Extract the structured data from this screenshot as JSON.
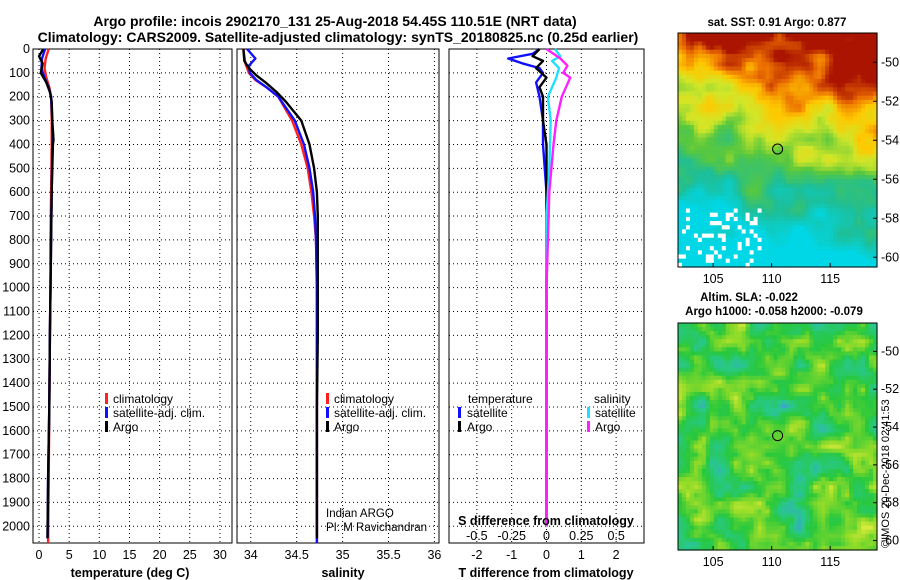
{
  "header": {
    "title_line1": "Argo profile: incois 2902170_131 25-Aug-2018 54.45S 110.51E (NRT data)",
    "title_line2": "Climatology: CARS2009. Satellite-adjusted climatology: synTS_20180825.nc (0.25d earlier)"
  },
  "colors": {
    "climatology": "#ff2020",
    "satellite": "#1010ff",
    "argo": "#000000",
    "satellite_salinity": "#20e0ff",
    "argo_salinity": "#ff20ff"
  },
  "depth_ticks": [
    "0",
    "100",
    "200",
    "300",
    "400",
    "500",
    "600",
    "700",
    "800",
    "900",
    "1000",
    "1100",
    "1200",
    "1300",
    "1400",
    "1500",
    "1600",
    "1700",
    "1800",
    "1900",
    "2000"
  ],
  "chart_data": [
    {
      "type": "line",
      "id": "temperature",
      "xlabel": "temperature (deg C)",
      "ylabel": "depth (dbar)",
      "xlim": [
        -1,
        32
      ],
      "ylim": [
        2070,
        0
      ],
      "xticks": [
        "0",
        "5",
        "10",
        "15",
        "20",
        "25",
        "30"
      ],
      "xtick_values": [
        0,
        5,
        10,
        15,
        20,
        25,
        30
      ],
      "legend": [
        "climatology",
        "satellite-adj. clim.",
        "Argo"
      ],
      "legend_placement": "bottom-right",
      "series": [
        {
          "name": "climatology",
          "color": "#ff2020",
          "depth": [
            0,
            40,
            80,
            120,
            160,
            200,
            300,
            400,
            600,
            800,
            1000,
            1200,
            1500,
            1800,
            2070
          ],
          "values": [
            1.6,
            1.1,
            0.9,
            1.2,
            1.7,
            2.0,
            2.1,
            2.1,
            2.0,
            1.9,
            1.9,
            1.8,
            1.7,
            1.6,
            1.5
          ]
        },
        {
          "name": "satellite-adj. clim.",
          "color": "#1010ff",
          "depth": [
            0,
            40,
            80,
            120,
            160,
            200,
            300,
            400,
            600,
            800,
            1000,
            1200,
            1500,
            1800,
            2050
          ],
          "values": [
            1.0,
            0.5,
            0.4,
            0.9,
            1.6,
            2.0,
            2.2,
            2.2,
            2.1,
            2.0,
            1.9,
            1.8,
            1.7,
            1.5,
            1.4
          ]
        },
        {
          "name": "Argo",
          "color": "#000000",
          "depth": [
            0,
            30,
            60,
            100,
            140,
            180,
            220,
            300,
            380,
            400,
            600,
            800,
            1000,
            1200,
            1500,
            1800,
            2050
          ],
          "values": [
            0.7,
            0.0,
            0.6,
            0.3,
            1.2,
            1.8,
            2.1,
            2.2,
            2.4,
            2.3,
            2.1,
            2.0,
            1.9,
            1.8,
            1.7,
            1.5,
            1.4
          ]
        }
      ]
    },
    {
      "type": "line",
      "id": "salinity",
      "xlabel": "salinity",
      "xlim": [
        33.85,
        36.05
      ],
      "ylim": [
        2070,
        0
      ],
      "xticks": [
        "34",
        "34.5",
        "35",
        "35.5",
        "36"
      ],
      "xtick_values": [
        34,
        34.5,
        35,
        35.5,
        36
      ],
      "legend": [
        "climatology",
        "satellite-adj. clim.",
        "Argo"
      ],
      "legend_placement": "bottom-right",
      "annotation": [
        "Indian ARGO",
        "PI: M Ravichandran"
      ],
      "series": [
        {
          "name": "climatology",
          "color": "#ff2020",
          "depth": [
            0,
            60,
            100,
            130,
            160,
            200,
            300,
            400,
            500,
            600,
            700,
            800,
            1000,
            1200,
            1500,
            1800,
            2070
          ],
          "values": [
            33.92,
            33.94,
            33.98,
            34.05,
            34.17,
            34.3,
            34.45,
            34.55,
            34.62,
            34.66,
            34.69,
            34.71,
            34.72,
            34.72,
            34.72,
            34.72,
            34.72
          ]
        },
        {
          "name": "satellite-adj. clim.",
          "color": "#1010ff",
          "depth": [
            0,
            40,
            70,
            100,
            130,
            160,
            200,
            300,
            400,
            500,
            600,
            700,
            800,
            1000,
            1200,
            1500,
            1800,
            2070
          ],
          "values": [
            33.96,
            34.05,
            33.98,
            33.99,
            34.06,
            34.17,
            34.3,
            34.48,
            34.58,
            34.64,
            34.68,
            34.7,
            34.71,
            34.72,
            34.72,
            34.72,
            34.72,
            34.72
          ]
        },
        {
          "name": "Argo",
          "color": "#000000",
          "depth": [
            0,
            50,
            80,
            110,
            140,
            180,
            220,
            300,
            400,
            500,
            600,
            700,
            800,
            1000,
            1200,
            1500,
            1800,
            2050
          ],
          "values": [
            33.92,
            33.93,
            33.98,
            34.06,
            34.16,
            34.28,
            34.38,
            34.55,
            34.64,
            34.69,
            34.72,
            34.73,
            34.73,
            34.73,
            34.73,
            34.72,
            34.72,
            34.72
          ]
        }
      ]
    },
    {
      "type": "line",
      "id": "differences",
      "xlabel": "T difference from climatology",
      "xlabel_top": "S difference from climatology",
      "xlim": [
        -2.8,
        2.8
      ],
      "ylim": [
        2070,
        0
      ],
      "xticks": [
        "-2",
        "-1",
        "0",
        "1",
        "2"
      ],
      "xtick_values": [
        -2,
        -1,
        0,
        1,
        2
      ],
      "top_ticks": [
        "-0.5",
        "-0.25",
        "0",
        "0.25",
        "0.5"
      ],
      "top_tick_values": [
        -0.5,
        -0.25,
        0,
        0.25,
        0.5
      ],
      "legend_temperature_title": "temperature",
      "legend_salinity_title": "salinity",
      "legend_temperature": [
        "satellite",
        "Argo"
      ],
      "legend_salinity": [
        "satellite",
        "Argo"
      ],
      "series": [
        {
          "name": "T satellite",
          "color": "#1010ff",
          "depth": [
            0,
            20,
            40,
            60,
            80,
            100,
            140,
            200,
            300,
            400,
            600,
            800,
            1000,
            1500,
            2000
          ],
          "values": [
            -0.2,
            -0.4,
            -1.1,
            -0.7,
            -0.2,
            -0.1,
            -0.3,
            -0.2,
            -0.1,
            -0.1,
            0.0,
            0.0,
            0.0,
            0.0,
            0.0
          ]
        },
        {
          "name": "T Argo",
          "color": "#000000",
          "depth": [
            0,
            30,
            50,
            80,
            120,
            160,
            200,
            300,
            400,
            600,
            800,
            1000,
            1500,
            2000
          ],
          "values": [
            -0.2,
            -0.4,
            -0.1,
            -0.3,
            0.0,
            -0.2,
            -0.1,
            -0.1,
            0.0,
            0.0,
            0.0,
            0.0,
            0.0,
            0.0
          ]
        },
        {
          "name": "S satellite",
          "color": "#20e0ff",
          "depth": [
            0,
            30,
            50,
            80,
            120,
            160,
            200,
            300,
            500,
            700,
            900,
            1000,
            1500,
            2000
          ],
          "values": [
            0.06,
            0.1,
            0.04,
            0.09,
            0.07,
            0.04,
            0.01,
            0.03,
            0.02,
            0.0,
            0.0,
            0.0,
            0.0,
            0.0
          ]
        },
        {
          "name": "S Argo",
          "color": "#ff20ff",
          "depth": [
            0,
            40,
            70,
            100,
            120,
            160,
            200,
            300,
            400,
            600,
            800,
            1000,
            1500,
            2000
          ],
          "values": [
            0.0,
            0.1,
            0.15,
            0.12,
            0.17,
            0.14,
            0.11,
            0.07,
            0.05,
            0.02,
            0.01,
            0.0,
            0.0,
            0.0
          ]
        }
      ]
    },
    {
      "type": "heatmap",
      "id": "sst_map",
      "title": "sat. SST: 0.91 Argo: 0.877",
      "xlim": [
        102,
        119
      ],
      "ylim": [
        -60.5,
        -48.5
      ],
      "xticks": [
        "105",
        "110",
        "115"
      ],
      "xtick_values": [
        105,
        110,
        115
      ],
      "yticks": [
        "-50",
        "-52",
        "-54",
        "-56",
        "-58",
        "-60"
      ],
      "ytick_values": [
        -50,
        -52,
        -54,
        -56,
        -58,
        -60
      ],
      "marker": {
        "lon": 110.51,
        "lat": -54.45
      }
    },
    {
      "type": "heatmap",
      "id": "sla_map",
      "title_line1": "Altim. SLA: -0.022",
      "title_line2": "Argo h1000: -0.058 h2000: -0.079",
      "xlim": [
        102,
        119
      ],
      "ylim": [
        -60.5,
        -48.5
      ],
      "xticks": [
        "105",
        "110",
        "115"
      ],
      "xtick_values": [
        105,
        110,
        115
      ],
      "yticks": [
        "-50",
        "-52",
        "-54",
        "-56",
        "-58",
        "-60"
      ],
      "ytick_values": [
        -50,
        -52,
        -54,
        -56,
        -58,
        -60
      ],
      "marker": {
        "lon": 110.51,
        "lat": -54.45
      },
      "credit": "©IMOS 20-Dec-2018 02:41:53"
    }
  ]
}
